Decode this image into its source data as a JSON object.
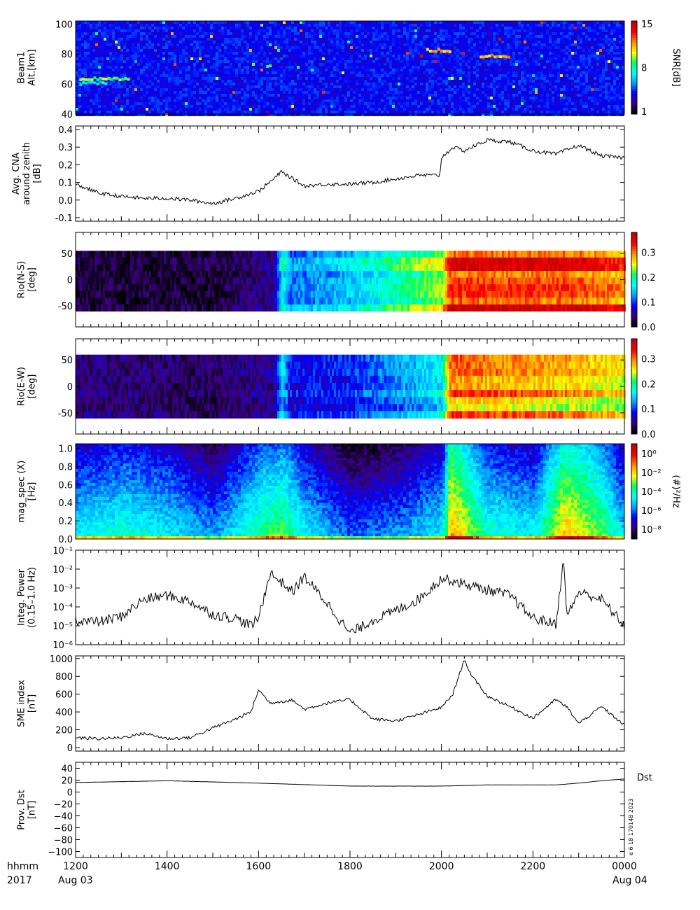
{
  "footer": {
    "time_unit": "hhmm",
    "year": "2017",
    "date_start": "Aug 03",
    "date_end": "Aug 04",
    "time_ticks": [
      "1200",
      "1400",
      "1600",
      "1800",
      "2000",
      "2200",
      "0000"
    ]
  },
  "colormap": {
    "stops": [
      "#000000",
      "#3b0080",
      "#0000ff",
      "#00a0ff",
      "#00ffff",
      "#00ff60",
      "#ffff00",
      "#ff9000",
      "#ff0000",
      "#c00000"
    ]
  },
  "chart_data": [
    {
      "type": "heatmap",
      "ylabel_lines": [
        "Beam1",
        "Alt.[km]"
      ],
      "ylim": [
        40,
        102
      ],
      "yticks": [
        40,
        60,
        80,
        100
      ],
      "colorbar": {
        "label": "SNR[dB]",
        "ticks": [
          "1",
          "8",
          "15"
        ],
        "range": [
          1,
          15
        ]
      },
      "features": [
        {
          "x_start": "1205",
          "x_end": "1310",
          "y": 63,
          "snr": 10
        },
        {
          "x_start": "1205",
          "x_end": "1240",
          "y": 60,
          "snr": 7
        },
        {
          "x_start": "1610",
          "x_end": "1615",
          "y": 72,
          "snr": 9
        },
        {
          "x_start": "1940",
          "x_end": "2010",
          "y": 82,
          "snr": 12
        },
        {
          "x_start": "2050",
          "x_end": "2130",
          "y": 78,
          "snr": 12
        }
      ]
    },
    {
      "type": "line",
      "ylabel_lines": [
        "Avg. CNA",
        "around zenith",
        "[dB]"
      ],
      "ylim": [
        -0.12,
        0.42
      ],
      "yticks": [
        "-0.1",
        "0.0",
        "0.1",
        "0.2",
        "0.3",
        "0.4"
      ],
      "x": [
        "1200",
        "1230",
        "1300",
        "1330",
        "1400",
        "1430",
        "1500",
        "1530",
        "1600",
        "1620",
        "1630",
        "1700",
        "1730",
        "1800",
        "1830",
        "1900",
        "1930",
        "1958",
        "2000",
        "2015",
        "2030",
        "2045",
        "2100",
        "2130",
        "2200",
        "2230",
        "2300",
        "2330",
        "0000"
      ],
      "values": [
        0.09,
        0.04,
        0.02,
        0.01,
        0.01,
        0.0,
        -0.02,
        0.01,
        0.05,
        0.12,
        0.16,
        0.08,
        0.09,
        0.09,
        0.1,
        0.12,
        0.14,
        0.14,
        0.24,
        0.3,
        0.28,
        0.31,
        0.34,
        0.33,
        0.28,
        0.26,
        0.31,
        0.25,
        0.24
      ]
    },
    {
      "type": "heatmap",
      "ylabel_lines": [
        "Rio(N-S)",
        "[deg]"
      ],
      "ylim": [
        -90,
        90
      ],
      "yticks": [
        "50",
        "0",
        "-50"
      ],
      "data_yrange": [
        -60,
        55
      ],
      "colorbar": {
        "label": "",
        "ticks": [
          "0.0",
          "0.1",
          "0.2",
          "0.3"
        ],
        "range": [
          0,
          0.38
        ]
      },
      "time_profile": {
        "x": [
          "1200",
          "1500",
          "1620",
          "1630",
          "1640",
          "1800",
          "1930",
          "2000",
          "2010",
          "2300",
          "0000"
        ],
        "values": [
          0.02,
          0.02,
          0.05,
          0.18,
          0.12,
          0.15,
          0.22,
          0.25,
          0.34,
          0.33,
          0.3
        ]
      }
    },
    {
      "type": "heatmap",
      "ylabel_lines": [
        "Rio(E-W)",
        "[deg]"
      ],
      "ylim": [
        -90,
        90
      ],
      "yticks": [
        "50",
        "0",
        "-50"
      ],
      "data_yrange": [
        -60,
        60
      ],
      "colorbar": {
        "label": "",
        "ticks": [
          "0.0",
          "0.1",
          "0.2",
          "0.3"
        ],
        "range": [
          0,
          0.38
        ]
      },
      "time_profile": {
        "x": [
          "1200",
          "1500",
          "1620",
          "1630",
          "1640",
          "1800",
          "1930",
          "2000",
          "2010",
          "2300",
          "0000"
        ],
        "values": [
          0.04,
          0.03,
          0.05,
          0.15,
          0.08,
          0.09,
          0.14,
          0.16,
          0.3,
          0.27,
          0.25
        ]
      }
    },
    {
      "type": "heatmap",
      "ylabel_lines": [
        "mag_spec (X)",
        "[Hz]"
      ],
      "ylim": [
        0,
        1.05
      ],
      "yticks": [
        "0.0",
        "0.2",
        "0.4",
        "0.6",
        "0.8",
        "1.0"
      ],
      "colorbar": {
        "label": "(#)²/Hz",
        "ticks": [
          "10⁰",
          "10⁻²",
          "10⁻⁴",
          "10⁻⁶",
          "10⁻⁸"
        ]
      },
      "time_profile": {
        "x": [
          "1200",
          "1300",
          "1400",
          "1500",
          "1600",
          "1630",
          "1700",
          "1800",
          "1900",
          "2000",
          "2010",
          "2100",
          "2200",
          "2240",
          "2300",
          "2330",
          "0000"
        ],
        "values": [
          0.45,
          0.5,
          0.45,
          0.35,
          0.55,
          0.6,
          0.45,
          0.3,
          0.35,
          0.45,
          0.8,
          0.5,
          0.45,
          0.75,
          0.7,
          0.6,
          0.4
        ]
      }
    },
    {
      "type": "line",
      "log_y": true,
      "ylabel_lines": [
        "Integ. Power",
        "(0.15–1.0 Hz)"
      ],
      "ylim_exp": [
        -6,
        -1
      ],
      "yticks": [
        "10⁻⁶",
        "10⁻⁵",
        "10⁻⁴",
        "10⁻³",
        "10⁻²",
        "10⁻¹"
      ],
      "x": [
        "1200",
        "1230",
        "1300",
        "1330",
        "1400",
        "1430",
        "1500",
        "1530",
        "1550",
        "1600",
        "1615",
        "1630",
        "1645",
        "1700",
        "1730",
        "1800",
        "1830",
        "1900",
        "1930",
        "2000",
        "2015",
        "2030",
        "2100",
        "2130",
        "2200",
        "2230",
        "2240",
        "2245",
        "2300",
        "2330",
        "0000"
      ],
      "values_exp": [
        -4.7,
        -4.8,
        -4.5,
        -3.6,
        -3.4,
        -3.7,
        -4.4,
        -4.6,
        -5.0,
        -4.6,
        -2.2,
        -2.7,
        -3.2,
        -2.4,
        -3.8,
        -5.4,
        -4.7,
        -4.2,
        -3.6,
        -2.5,
        -2.6,
        -2.8,
        -3.1,
        -3.4,
        -4.6,
        -4.9,
        -1.6,
        -4.5,
        -3.2,
        -3.6,
        -5.0
      ]
    },
    {
      "type": "line",
      "ylabel_lines": [
        "SME index",
        "[nT]"
      ],
      "ylim": [
        -40,
        1030
      ],
      "yticks": [
        "0",
        "200",
        "400",
        "600",
        "800",
        "1000"
      ],
      "x": [
        "1200",
        "1230",
        "1300",
        "1330",
        "1400",
        "1430",
        "1500",
        "1530",
        "1550",
        "1600",
        "1615",
        "1630",
        "1645",
        "1700",
        "1730",
        "1800",
        "1830",
        "1900",
        "1930",
        "2000",
        "2015",
        "2030",
        "2040",
        "2100",
        "2130",
        "2200",
        "2230",
        "2245",
        "2300",
        "2330",
        "0000"
      ],
      "values": [
        110,
        100,
        110,
        160,
        100,
        110,
        220,
        320,
        400,
        650,
        500,
        520,
        530,
        430,
        500,
        540,
        320,
        300,
        370,
        450,
        600,
        990,
        800,
        580,
        460,
        330,
        540,
        450,
        270,
        460,
        250
      ]
    },
    {
      "type": "line",
      "ylabel_lines": [
        "Prov. Dst",
        "[nT]"
      ],
      "ylim": [
        -110,
        50
      ],
      "yticks": [
        "40",
        "20",
        "0",
        "−20",
        "−40",
        "−60",
        "−80",
        "−100"
      ],
      "series_label": "Dst",
      "x": [
        "1200",
        "1400",
        "1600",
        "1800",
        "2000",
        "2100",
        "2200",
        "2230",
        "2300",
        "2330",
        "0000"
      ],
      "values": [
        16,
        19,
        15,
        10,
        10,
        12,
        12,
        12,
        15,
        19,
        22
      ]
    }
  ],
  "side_note": "e 6 18 170148 2023"
}
